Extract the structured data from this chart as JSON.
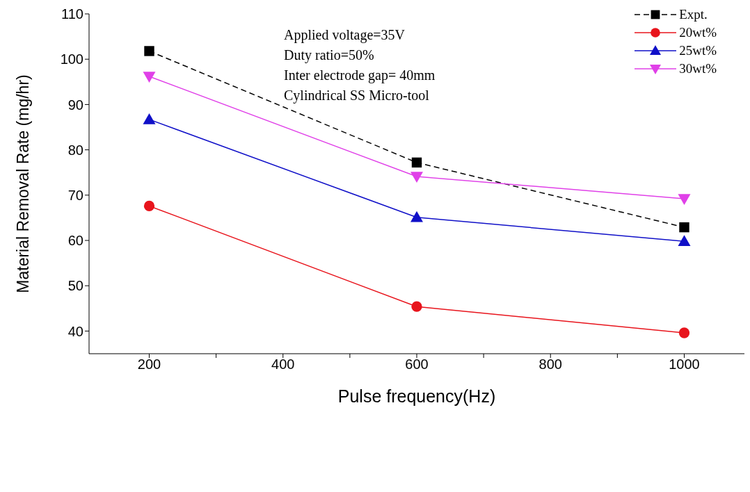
{
  "chart_data": {
    "type": "line",
    "xlabel": "Pulse frequency(Hz)",
    "ylabel": "Material Removal Rate (mg/hr)",
    "x": [
      200,
      600,
      1000
    ],
    "series": [
      {
        "name": "Expt.",
        "color": "#000000",
        "values": [
          101.8,
          77.2,
          62.9
        ],
        "marker": "square",
        "line_style": "dashed"
      },
      {
        "name": "20wt%",
        "color": "#e8141c",
        "values": [
          67.6,
          45.4,
          39.6
        ],
        "marker": "circle",
        "line_style": "solid"
      },
      {
        "name": "25wt%",
        "color": "#1010c8",
        "values": [
          86.7,
          65.1,
          59.8
        ],
        "marker": "triangle",
        "line_style": "solid"
      },
      {
        "name": "30wt%",
        "color": "#e040e8",
        "values": [
          96.2,
          74.1,
          69.2
        ],
        "marker": "triangle-down",
        "line_style": "solid"
      }
    ],
    "xlim": [
      110,
      1090
    ],
    "xticks": [
      200,
      {
        "value": 300,
        "label": null
      },
      400,
      {
        "value": 500,
        "label": null
      },
      600,
      {
        "value": 700,
        "label": null
      },
      800,
      {
        "value": 900,
        "label": null
      },
      1000
    ],
    "ylim": [
      35,
      110
    ],
    "yticks": [
      40,
      50,
      60,
      70,
      80,
      90,
      100,
      110
    ],
    "grid": false,
    "legend": "top right",
    "annotations": [
      "Applied voltage=35V",
      "Duty ratio=50%",
      "Inter electrode gap= 40mm",
      "Cylindrical SS Micro-tool"
    ]
  }
}
